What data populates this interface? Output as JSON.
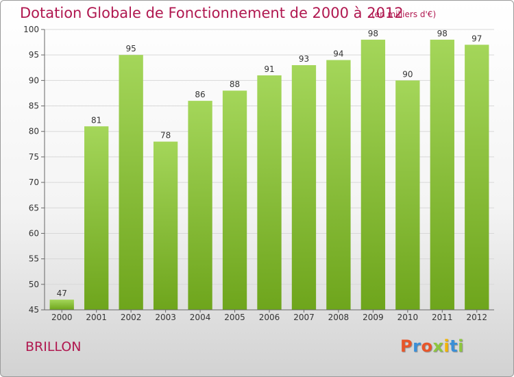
{
  "header": {
    "title": "Dotation Globale de Fonctionnement de 2000 à 2012",
    "unit": "(en milliers d'€)"
  },
  "footer": {
    "commune": "BRILLON",
    "logo": "Proxiti",
    "logo_colors": [
      "#e8562a",
      "#3a8fd8",
      "#e8562a",
      "#8dc63f",
      "#f4b400",
      "#3a8fd8",
      "#8dc63f"
    ]
  },
  "colors": {
    "title": "#b0174f",
    "bar_light": "#a4d65a",
    "bar_dark": "#6ea51c"
  },
  "chart_data": {
    "type": "bar",
    "categories": [
      "2000",
      "2001",
      "2002",
      "2003",
      "2004",
      "2005",
      "2006",
      "2007",
      "2008",
      "2009",
      "2010",
      "2011",
      "2012"
    ],
    "values": [
      47,
      81,
      95,
      78,
      86,
      88,
      91,
      93,
      94,
      98,
      90,
      98,
      97
    ],
    "ylim": [
      45,
      100
    ],
    "yticks": [
      45,
      50,
      55,
      60,
      65,
      70,
      75,
      80,
      85,
      90,
      95,
      100
    ],
    "grid": true,
    "title": "Dotation Globale de Fonctionnement de 2000 à 2012",
    "xlabel": "",
    "ylabel": ""
  }
}
